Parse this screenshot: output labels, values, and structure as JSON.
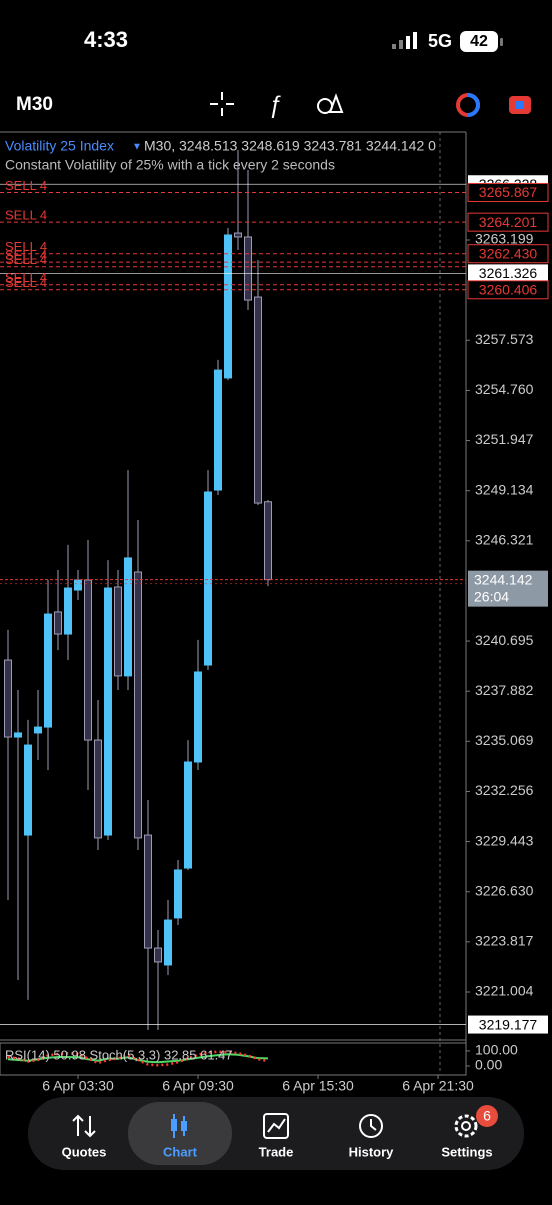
{
  "status_bar": {
    "time": "4:33",
    "network": "5G",
    "battery": "42"
  },
  "toolbar": {
    "timeframe": "M30"
  },
  "chart_data": {
    "type": "candlestick",
    "title": "Volatility 25 Index",
    "ohlc_text": "M30, 3248.513 3248.619 3243.781 3244.142 0",
    "subtitle": "Constant Volatility of 25% with a tick every 2 seconds",
    "x": [
      0,
      0.5,
      1,
      1.5,
      2,
      2.5,
      3,
      3.5,
      4,
      4.5,
      5,
      5.5,
      6,
      6.5,
      7,
      7.5,
      8,
      8.5,
      9,
      9.5,
      10,
      10.5,
      11,
      11.5,
      12,
      12.5,
      13
    ],
    "open": [
      3239.63,
      3235.31,
      3229.81,
      3235.54,
      3235.87,
      3242.33,
      3241.09,
      3243.56,
      3244.12,
      3235.14,
      3229.81,
      3243.73,
      3238.74,
      3244.57,
      3229.81,
      3223.47,
      3222.52,
      3225.16,
      3227.96,
      3233.91,
      3239.35,
      3249.17,
      3255.46,
      3263.59,
      3263.37,
      3260.0,
      3248.513
    ],
    "high": [
      3241.32,
      3237.95,
      3236.27,
      3237.95,
      3244.12,
      3244.68,
      3246.09,
      3244.68,
      3246.37,
      3237.39,
      3245.24,
      3244.68,
      3250.29,
      3247.49,
      3231.78,
      3224.48,
      3226.17,
      3228.41,
      3235.14,
      3240.76,
      3250.29,
      3256.47,
      3263.87,
      3268.25,
      3267.13,
      3262.08,
      3248.619
    ],
    "low": [
      3226.17,
      3221.68,
      3220.56,
      3234.02,
      3233.46,
      3240.19,
      3239.63,
      3243.0,
      3232.34,
      3228.97,
      3229.53,
      3237.95,
      3237.95,
      3228.97,
      3218.87,
      3218.87,
      3221.96,
      3224.76,
      3227.85,
      3233.46,
      3239.07,
      3248.89,
      3255.34,
      3262.64,
      3259.27,
      3248.33,
      3243.781
    ],
    "close": [
      3235.31,
      3235.54,
      3234.86,
      3235.87,
      3242.21,
      3241.09,
      3243.67,
      3244.12,
      3235.14,
      3229.65,
      3243.67,
      3238.74,
      3245.36,
      3229.65,
      3223.47,
      3222.69,
      3225.04,
      3227.85,
      3233.91,
      3238.96,
      3249.06,
      3255.9,
      3263.48,
      3263.37,
      3259.83,
      3248.44,
      3244.142
    ],
    "up_color": "#4fc3f7",
    "down_color": "#34324a",
    "wick_color": "#9e9cb4",
    "xlim": [
      -0.4,
      22.85
    ],
    "xticks": [
      {
        "value": 3.5,
        "label": "6 Apr 03:30"
      },
      {
        "value": 9.5,
        "label": "6 Apr 09:30"
      },
      {
        "value": 15.5,
        "label": "6 Apr 15:30"
      },
      {
        "value": 21.5,
        "label": "6 Apr 21:30"
      }
    ],
    "ylim": [
      3218.31,
      3269.26
    ],
    "yticks": [
      3263.199,
      3257.573,
      {
        "value": 3254.76,
        "label": "3254.760"
      },
      3251.947,
      3249.134,
      3246.321,
      3240.695,
      3237.882,
      3235.069,
      3232.256,
      3229.443,
      {
        "value": 3226.63,
        "label": "3226.630"
      },
      3223.817,
      3221.004
    ],
    "levels": [
      {
        "value": 3266.328,
        "color": "#ffffff"
      },
      {
        "value": 3261.326,
        "color": "#ffffff"
      },
      {
        "value": 3219.177,
        "color": "#ffffff"
      }
    ],
    "orders": [
      {
        "label": "SELL 4",
        "value": 3265.867,
        "price_box": true
      },
      {
        "label": "SELL 4",
        "value": 3264.201,
        "price_box": true
      },
      {
        "label": "SELL 4",
        "value": 3262.43,
        "value_label": "3262.430",
        "price_box": true
      },
      {
        "label": "SELL 4",
        "value": 3261.96,
        "price_box": false
      },
      {
        "label": "SELL 4",
        "value": 3261.7,
        "price_box": false
      },
      {
        "label": "SELL 4",
        "value": 3260.69,
        "price_box": false
      },
      {
        "label": "SELL 4",
        "value": 3260.406,
        "price_box": true
      }
    ],
    "order_color": "#e53935",
    "last_price": {
      "value": 3244.142,
      "countdown": "26:04"
    },
    "indicator": {
      "title": "RSI(14) 50.98 Stoch(5,3,3) 32.85 61.47",
      "ylim": [
        -60,
        153
      ],
      "yticks": [
        {
          "value": 100,
          "label": "100.00"
        },
        {
          "value": 0,
          "label": "0.00"
        }
      ],
      "series": [
        {
          "name": "RSI(14)",
          "color": "#4cd964",
          "values": [
            45,
            40,
            35,
            45,
            55,
            60,
            60,
            58,
            45,
            35,
            50,
            48,
            58,
            40,
            28,
            25,
            30,
            35,
            45,
            55,
            65,
            72,
            78,
            75,
            65,
            52,
            50.98
          ]
        },
        {
          "name": "Stoch(5,3,3)",
          "color": "#ff3b30",
          "values": [
            60,
            50,
            30,
            40,
            70,
            80,
            85,
            80,
            50,
            20,
            40,
            50,
            70,
            40,
            10,
            5,
            10,
            25,
            50,
            75,
            90,
            95,
            92,
            85,
            70,
            45,
            32.85
          ]
        }
      ]
    }
  },
  "nav": {
    "items": [
      "Quotes",
      "Chart",
      "Trade",
      "History",
      "Settings"
    ],
    "badge": "6"
  }
}
